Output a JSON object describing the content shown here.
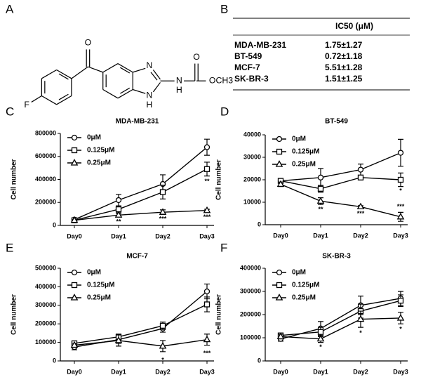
{
  "panel_labels": [
    "A",
    "B",
    "C",
    "D",
    "E",
    "F"
  ],
  "structure": {
    "labels": [
      "O",
      "F",
      "N",
      "N",
      "H",
      "N",
      "H",
      "O",
      "OCH3"
    ]
  },
  "table": {
    "header": "IC50 (μM)",
    "rows": [
      [
        "MDA-MB-231",
        "1.75±1.27"
      ],
      [
        "BT-549",
        "0.72±1.18"
      ],
      [
        "MCF-7",
        "5.51±1.28"
      ],
      [
        "SK-BR-3",
        "1.51±1.25"
      ]
    ]
  },
  "chart_data": [
    {
      "type": "line",
      "title": "MDA-MB-231",
      "y_label": "Cell number",
      "categories": [
        "Day0",
        "Day1",
        "Day2",
        "Day3"
      ],
      "ylim": [
        0,
        800000
      ],
      "yticks": [
        0,
        200000,
        400000,
        600000,
        800000
      ],
      "series": [
        {
          "name": "0μM",
          "color": "#000000",
          "marker": "circle",
          "values": [
            50000,
            220000,
            360000,
            680000
          ],
          "errors": [
            10000,
            50000,
            80000,
            70000
          ]
        },
        {
          "name": "0.125μM",
          "color": "#000000",
          "marker": "square",
          "values": [
            45000,
            140000,
            290000,
            490000
          ],
          "errors": [
            5000,
            30000,
            60000,
            60000
          ]
        },
        {
          "name": "0.25μM",
          "color": "#000000",
          "marker": "triangle",
          "values": [
            45000,
            90000,
            115000,
            130000
          ],
          "errors": [
            5000,
            15000,
            20000,
            10000
          ]
        }
      ],
      "annotations": [
        "**",
        "***",
        "**",
        "***"
      ]
    },
    {
      "type": "line",
      "title": "BT-549",
      "y_label": "Cell number",
      "categories": [
        "Day0",
        "Day1",
        "Day2",
        "Day3"
      ],
      "ylim": [
        0,
        40000
      ],
      "yticks": [
        0,
        10000,
        20000,
        30000,
        40000
      ],
      "series": [
        {
          "name": "0μM",
          "color": "#000000",
          "marker": "circle",
          "values": [
            19500,
            21000,
            24500,
            32000
          ],
          "errors": [
            500,
            4000,
            2500,
            6000
          ]
        },
        {
          "name": "0.125μM",
          "color": "#000000",
          "marker": "square",
          "values": [
            19500,
            16000,
            21000,
            20000
          ],
          "errors": [
            500,
            1500,
            1000,
            3000
          ]
        },
        {
          "name": "0.25μM",
          "color": "#000000",
          "marker": "triangle",
          "values": [
            18000,
            10500,
            8000,
            3500
          ],
          "errors": [
            1000,
            1500,
            500,
            2000
          ]
        }
      ],
      "annotations": [
        "**",
        "***",
        "*",
        "***"
      ]
    },
    {
      "type": "line",
      "title": "MCF-7",
      "y_label": "Cell number",
      "categories": [
        "Day0",
        "Day1",
        "Day2",
        "Day3"
      ],
      "ylim": [
        0,
        500000
      ],
      "yticks": [
        0,
        100000,
        200000,
        300000,
        400000,
        500000
      ],
      "series": [
        {
          "name": "0μM",
          "color": "#000000",
          "marker": "circle",
          "values": [
            75000,
            115000,
            175000,
            375000
          ],
          "errors": [
            15000,
            20000,
            20000,
            40000
          ]
        },
        {
          "name": "0.125μM",
          "color": "#000000",
          "marker": "square",
          "values": [
            95000,
            130000,
            190000,
            305000
          ],
          "errors": [
            10000,
            15000,
            20000,
            40000
          ]
        },
        {
          "name": "0.25μM",
          "color": "#000000",
          "marker": "triangle",
          "values": [
            85000,
            110000,
            80000,
            115000
          ],
          "errors": [
            10000,
            30000,
            30000,
            30000
          ]
        }
      ],
      "annotations": [
        "*",
        "***"
      ]
    },
    {
      "type": "line",
      "title": "SK-BR-3",
      "y_label": "Cell number",
      "categories": [
        "Day0",
        "Day1",
        "Day2",
        "Day3"
      ],
      "ylim": [
        0,
        400000
      ],
      "yticks": [
        0,
        100000,
        200000,
        300000,
        400000
      ],
      "series": [
        {
          "name": "0μM",
          "color": "#000000",
          "marker": "circle",
          "values": [
            95000,
            140000,
            240000,
            270000
          ],
          "errors": [
            10000,
            30000,
            40000,
            30000
          ]
        },
        {
          "name": "0.125μM",
          "color": "#000000",
          "marker": "square",
          "values": [
            110000,
            125000,
            215000,
            260000
          ],
          "errors": [
            5000,
            20000,
            30000,
            25000
          ]
        },
        {
          "name": "0.25μM",
          "color": "#000000",
          "marker": "triangle",
          "values": [
            105000,
            95000,
            180000,
            185000
          ],
          "errors": [
            10000,
            15000,
            35000,
            25000
          ]
        }
      ],
      "annotations": [
        "*",
        "*",
        "*"
      ]
    }
  ]
}
